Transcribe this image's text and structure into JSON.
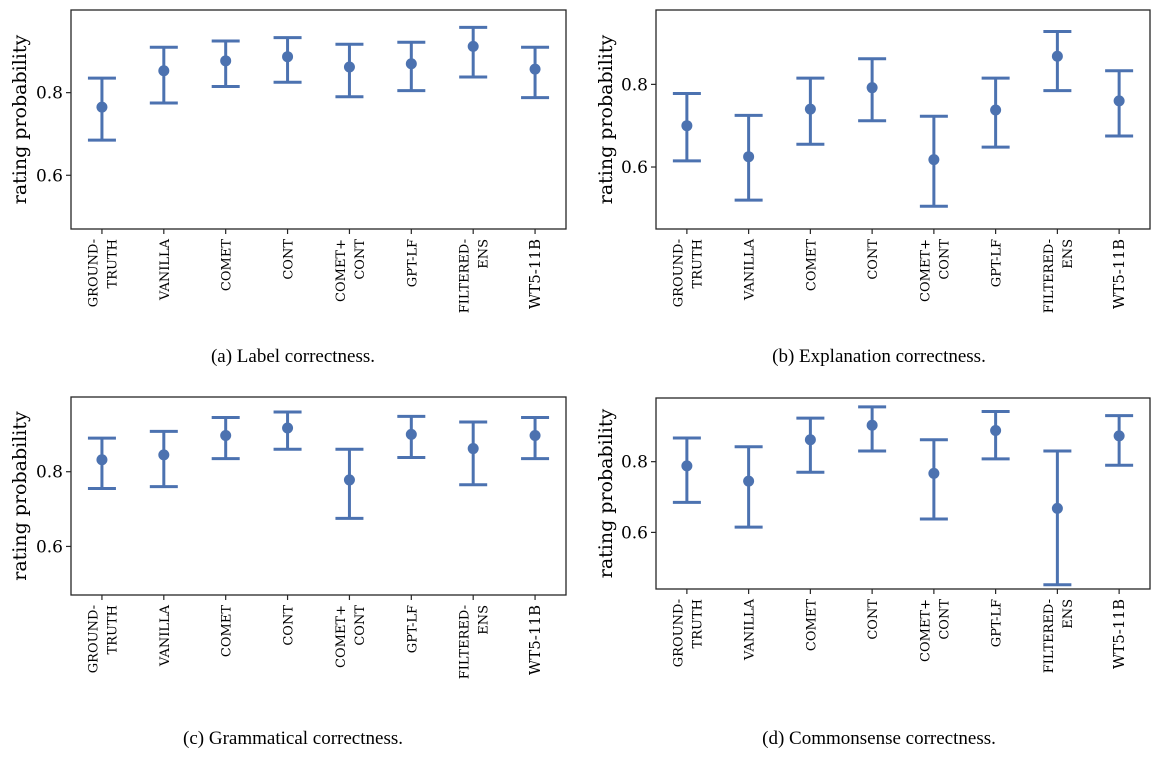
{
  "chart_data": [
    {
      "type": "errorbar",
      "caption": "(a) Label correctness.",
      "ylabel": "rating probability",
      "ylim": [
        0.47,
        1.0
      ],
      "yticks": [
        0.6,
        0.8
      ],
      "categories": [
        [
          "GROUND-",
          "TRUTH"
        ],
        [
          "VANILLA"
        ],
        [
          "COMET"
        ],
        [
          "CONT"
        ],
        [
          "COMET+",
          "CONT"
        ],
        [
          "GPT-LF"
        ],
        [
          "FILTERED-",
          "ENS"
        ],
        [
          "WT5-11B"
        ]
      ],
      "values": [
        0.765,
        0.853,
        0.877,
        0.887,
        0.862,
        0.87,
        0.912,
        0.857
      ],
      "lower": [
        0.685,
        0.775,
        0.815,
        0.825,
        0.79,
        0.805,
        0.838,
        0.788
      ],
      "upper": [
        0.835,
        0.91,
        0.925,
        0.933,
        0.917,
        0.922,
        0.958,
        0.91
      ]
    },
    {
      "type": "errorbar",
      "caption": "(b) Explanation correctness.",
      "ylabel": "rating probability",
      "ylim": [
        0.45,
        0.98
      ],
      "yticks": [
        0.6,
        0.8
      ],
      "categories": [
        [
          "GROUND-",
          "TRUTH"
        ],
        [
          "VANILLA"
        ],
        [
          "COMET"
        ],
        [
          "CONT"
        ],
        [
          "COMET+",
          "CONT"
        ],
        [
          "GPT-LF"
        ],
        [
          "FILTERED-",
          "ENS"
        ],
        [
          "WT5-11B"
        ]
      ],
      "values": [
        0.7,
        0.625,
        0.74,
        0.792,
        0.618,
        0.738,
        0.868,
        0.76
      ],
      "lower": [
        0.615,
        0.52,
        0.655,
        0.712,
        0.505,
        0.648,
        0.785,
        0.675
      ],
      "upper": [
        0.778,
        0.725,
        0.815,
        0.862,
        0.723,
        0.815,
        0.928,
        0.833
      ]
    },
    {
      "type": "errorbar",
      "caption": "(c) Grammatical correctness.",
      "ylabel": "rating probability",
      "ylim": [
        0.47,
        1.0
      ],
      "yticks": [
        0.6,
        0.8
      ],
      "categories": [
        [
          "GROUND-",
          "TRUTH"
        ],
        [
          "VANILLA"
        ],
        [
          "COMET"
        ],
        [
          "CONT"
        ],
        [
          "COMET+",
          "CONT"
        ],
        [
          "GPT-LF"
        ],
        [
          "FILTERED-",
          "ENS"
        ],
        [
          "WT5-11B"
        ]
      ],
      "values": [
        0.832,
        0.845,
        0.897,
        0.917,
        0.778,
        0.9,
        0.862,
        0.897
      ],
      "lower": [
        0.755,
        0.76,
        0.835,
        0.86,
        0.675,
        0.838,
        0.765,
        0.835
      ],
      "upper": [
        0.89,
        0.908,
        0.945,
        0.96,
        0.86,
        0.948,
        0.933,
        0.945
      ]
    },
    {
      "type": "errorbar",
      "caption": "(d) Commonsense correctness.",
      "ylabel": "rating probability",
      "ylim": [
        0.44,
        0.98
      ],
      "yticks": [
        0.6,
        0.8
      ],
      "categories": [
        [
          "GROUND-",
          "TRUTH"
        ],
        [
          "VANILLA"
        ],
        [
          "COMET"
        ],
        [
          "CONT"
        ],
        [
          "COMET+",
          "CONT"
        ],
        [
          "GPT-LF"
        ],
        [
          "FILTERED-",
          "ENS"
        ],
        [
          "WT5-11B"
        ]
      ],
      "values": [
        0.788,
        0.745,
        0.862,
        0.903,
        0.767,
        0.888,
        0.668,
        0.873
      ],
      "lower": [
        0.685,
        0.615,
        0.77,
        0.83,
        0.638,
        0.808,
        0.452,
        0.79
      ],
      "upper": [
        0.867,
        0.842,
        0.923,
        0.955,
        0.862,
        0.942,
        0.83,
        0.93
      ]
    }
  ],
  "colors": {
    "series": "#4c72b0",
    "axis": "#262626"
  }
}
